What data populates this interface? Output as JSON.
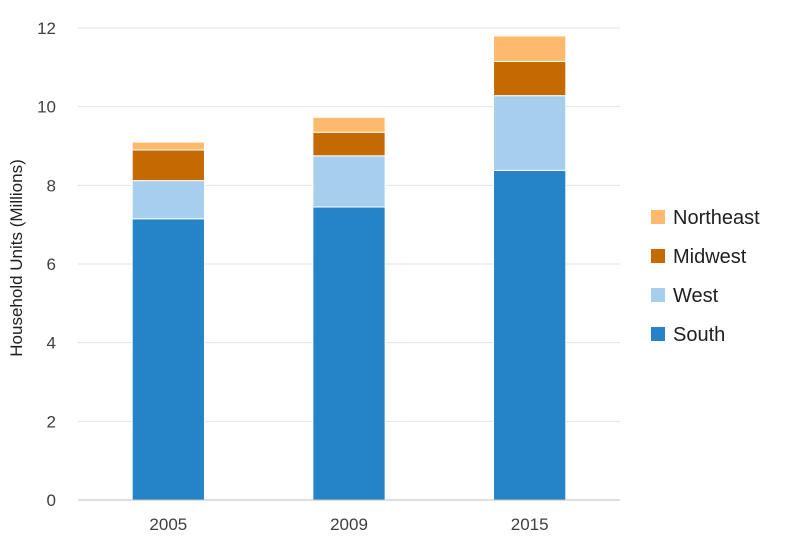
{
  "chart_data": {
    "type": "bar",
    "stacked": true,
    "title": "",
    "xlabel": "",
    "ylabel": "Household Units (Millions)",
    "ylim": [
      0,
      12
    ],
    "yticks": [
      "0",
      "2",
      "4",
      "6",
      "8",
      "10",
      "12"
    ],
    "grid": true,
    "legend_position": "right",
    "categories": [
      "2005",
      "2009",
      "2015"
    ],
    "series": [
      {
        "name": "South",
        "color": "#2583C8",
        "values": [
          7.15,
          7.45,
          8.38
        ]
      },
      {
        "name": "West",
        "color": "#A6CFEE",
        "values": [
          0.97,
          1.3,
          1.9
        ]
      },
      {
        "name": "Midwest",
        "color": "#C46A00",
        "values": [
          0.78,
          0.6,
          0.87
        ]
      },
      {
        "name": "Northeast",
        "color": "#FDBA6C",
        "values": [
          0.2,
          0.38,
          0.65
        ]
      }
    ],
    "legend_order": [
      "Northeast",
      "Midwest",
      "West",
      "South"
    ]
  }
}
